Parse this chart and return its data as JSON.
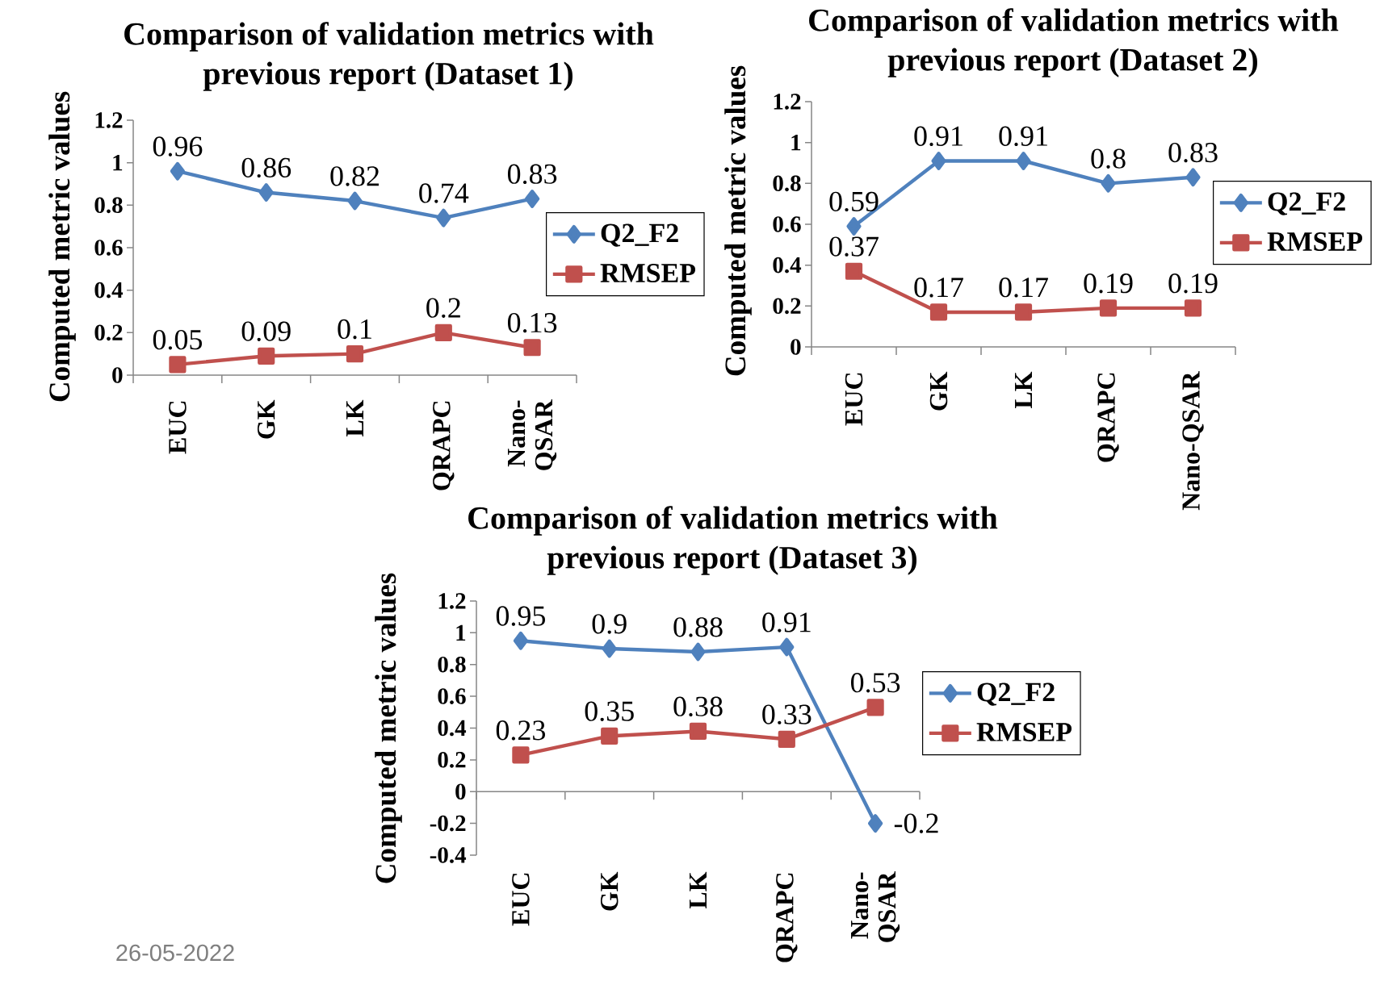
{
  "chart_data": [
    {
      "type": "line",
      "title": "Comparison of validation metrics with previous report (Dataset 1)",
      "ylabel": "Computed metric values",
      "categories": [
        "EUC",
        "GK",
        "LK",
        "QRAPC",
        "Nano-QSAR"
      ],
      "series": [
        {
          "name": "Q2_F2",
          "color": "#4f81bd",
          "marker": "diamond",
          "values": [
            0.96,
            0.86,
            0.82,
            0.74,
            0.83
          ]
        },
        {
          "name": "RMSEP",
          "color": "#c0504d",
          "marker": "square",
          "values": [
            0.05,
            0.09,
            0.1,
            0.2,
            0.13
          ]
        }
      ],
      "ylim": [
        0,
        1.2
      ],
      "yticks": [
        0,
        0.2,
        0.4,
        0.6,
        0.8,
        1,
        1.2
      ],
      "line_style": "solid",
      "data_labels": true,
      "legend": "right"
    },
    {
      "type": "line",
      "title": "Comparison of validation metrics with previous report (Dataset 2)",
      "ylabel": "Computed metric values",
      "categories": [
        "EUC",
        "GK",
        "LK",
        "QRAPC",
        "Nano-QSAR"
      ],
      "series": [
        {
          "name": "Q2_F2",
          "color": "#4f81bd",
          "marker": "diamond",
          "values": [
            0.59,
            0.91,
            0.91,
            0.8,
            0.83
          ]
        },
        {
          "name": "RMSEP",
          "color": "#c0504d",
          "marker": "square",
          "values": [
            0.37,
            0.17,
            0.17,
            0.19,
            0.19
          ]
        }
      ],
      "ylim": [
        0,
        1.2
      ],
      "yticks": [
        0,
        0.2,
        0.4,
        0.6,
        0.8,
        1,
        1.2
      ],
      "line_style": "solid",
      "data_labels": true,
      "legend": "right"
    },
    {
      "type": "line",
      "title": "Comparison of validation metrics with previous report (Dataset 3)",
      "ylabel": "Computed metric values",
      "categories": [
        "EUC",
        "GK",
        "LK",
        "QRAPC",
        "Nano-QSAR"
      ],
      "series": [
        {
          "name": "Q2_F2",
          "color": "#4f81bd",
          "marker": "diamond",
          "values": [
            0.95,
            0.9,
            0.88,
            0.91,
            -0.2
          ]
        },
        {
          "name": "RMSEP",
          "color": "#c0504d",
          "marker": "square",
          "values": [
            0.23,
            0.35,
            0.38,
            0.33,
            0.53
          ]
        }
      ],
      "ylim": [
        -0.4,
        1.2
      ],
      "yticks": [
        -0.4,
        -0.2,
        0,
        0.2,
        0.4,
        0.6,
        0.8,
        1,
        1.2
      ],
      "line_style": "solid",
      "data_labels": true,
      "legend": "right",
      "annotations": [
        "26-05-2022"
      ]
    }
  ]
}
